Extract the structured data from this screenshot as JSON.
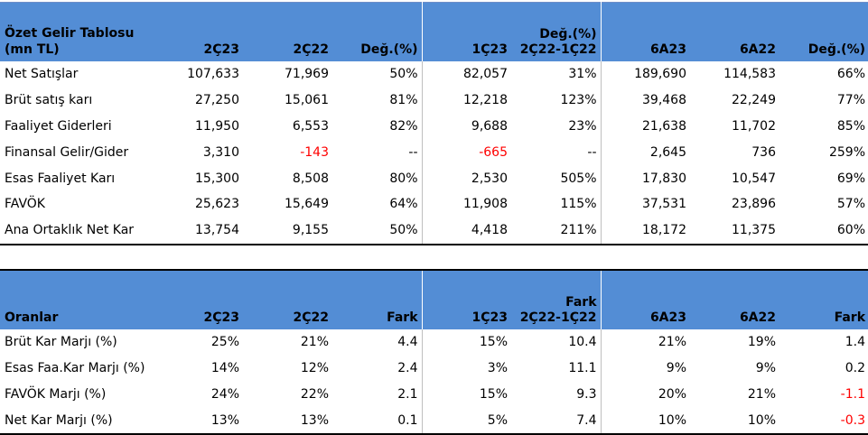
{
  "income_table": {
    "header": {
      "title_line1": "Özet Gelir Tablosu",
      "title_line2": "(mn TL)",
      "columns": [
        "2Ç23",
        "2Ç22",
        "Değ.(%)",
        "1Ç23",
        "Değ.(%)\n2Ç22-1Ç22",
        "6A23",
        "6A22",
        "Değ.(%)"
      ],
      "col5_line1": "Değ.(%)",
      "col5_line2": "2Ç22-1Ç22"
    },
    "rows": [
      {
        "label": "Net Satışlar",
        "values": [
          "107,633",
          "71,969",
          "50%",
          "82,057",
          "31%",
          "189,690",
          "114,583",
          "66%"
        ]
      },
      {
        "label": "Brüt satış karı",
        "values": [
          "27,250",
          "15,061",
          "81%",
          "12,218",
          "123%",
          "39,468",
          "22,249",
          "77%"
        ]
      },
      {
        "label": "Faaliyet Giderleri",
        "values": [
          "11,950",
          "6,553",
          "82%",
          "9,688",
          "23%",
          "21,638",
          "11,702",
          "85%"
        ]
      },
      {
        "label": "Finansal Gelir/Gider",
        "values": [
          "3,310",
          "-143",
          "--",
          "-665",
          "--",
          "2,645",
          "736",
          "259%"
        ]
      },
      {
        "label": "Esas Faaliyet Karı",
        "values": [
          "15,300",
          "8,508",
          "80%",
          "2,530",
          "505%",
          "17,830",
          "10,547",
          "69%"
        ]
      },
      {
        "label": "FAVÖK",
        "values": [
          "25,623",
          "15,649",
          "64%",
          "11,908",
          "115%",
          "37,531",
          "23,896",
          "57%"
        ]
      },
      {
        "label": "Ana Ortaklık Net Kar",
        "values": [
          "13,754",
          "9,155",
          "50%",
          "4,418",
          "211%",
          "18,172",
          "11,375",
          "60%"
        ]
      }
    ]
  },
  "ratio_table": {
    "header": {
      "title": "Oranlar",
      "col1": "2Ç23",
      "col2": "2Ç22",
      "col3": "Fark",
      "col4": "1Ç23",
      "col5_line1": "Fark",
      "col5_line2": "2Ç22-1Ç22",
      "col6": "6A23",
      "col7": "6A22",
      "col8": "Fark"
    },
    "rows": [
      {
        "label": "Brüt Kar Marjı (%)",
        "values": [
          "25%",
          "21%",
          "4.4",
          "15%",
          "10.4",
          "21%",
          "19%",
          "1.4"
        ]
      },
      {
        "label": "Esas Faa.Kar Marjı (%)",
        "values": [
          "14%",
          "12%",
          "2.4",
          "3%",
          "11.1",
          "9%",
          "9%",
          "0.2"
        ]
      },
      {
        "label": "FAVÖK Marjı (%)",
        "values": [
          "24%",
          "22%",
          "2.1",
          "15%",
          "9.3",
          "20%",
          "21%",
          "-1.1"
        ]
      },
      {
        "label": "Net Kar Marjı (%)",
        "values": [
          "13%",
          "13%",
          "0.1",
          "5%",
          "7.4",
          "10%",
          "10%",
          "-0.3"
        ]
      }
    ]
  },
  "colors": {
    "header_bg": "#538dd5",
    "negative": "#ff0000"
  }
}
